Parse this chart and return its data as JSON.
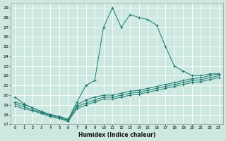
{
  "xlabel": "Humidex (Indice chaleur)",
  "background_color": "#cce8e0",
  "grid_color": "#ffffff",
  "line_color": "#1a7a6e",
  "xlim": [
    -0.5,
    23.5
  ],
  "ylim": [
    17,
    29.5
  ],
  "xticks": [
    0,
    1,
    2,
    3,
    4,
    5,
    6,
    7,
    8,
    9,
    10,
    11,
    12,
    13,
    14,
    15,
    16,
    17,
    18,
    19,
    20,
    21,
    22,
    23
  ],
  "yticks": [
    17,
    18,
    19,
    20,
    21,
    22,
    23,
    24,
    25,
    26,
    27,
    28,
    29
  ],
  "lines": [
    {
      "x": [
        0,
        1,
        2,
        3,
        4,
        5,
        6,
        7,
        8,
        9,
        10,
        11,
        12,
        13,
        14,
        15,
        16,
        17,
        18,
        19,
        20,
        21,
        22,
        23
      ],
      "y": [
        19.8,
        19.1,
        18.7,
        18.3,
        18.0,
        17.8,
        17.5,
        19.3,
        21.0,
        21.5,
        27.0,
        29.0,
        27.0,
        28.3,
        28.0,
        27.8,
        27.2,
        25.0,
        23.0,
        22.5,
        22.0,
        22.0,
        22.2,
        22.2
      ]
    },
    {
      "x": [
        0,
        1,
        2,
        3,
        4,
        5,
        6,
        7,
        8,
        9,
        10,
        11,
        12,
        13,
        14,
        15,
        16,
        17,
        18,
        19,
        20,
        21,
        22,
        23
      ],
      "y": [
        19.3,
        19.0,
        18.7,
        18.3,
        18.0,
        17.8,
        17.5,
        19.0,
        19.5,
        19.8,
        20.0,
        20.0,
        20.2,
        20.4,
        20.5,
        20.7,
        20.9,
        21.1,
        21.3,
        21.5,
        21.7,
        21.8,
        22.0,
        22.2
      ]
    },
    {
      "x": [
        0,
        1,
        2,
        3,
        4,
        5,
        6,
        7,
        8,
        9,
        10,
        11,
        12,
        13,
        14,
        15,
        16,
        17,
        18,
        19,
        20,
        21,
        22,
        23
      ],
      "y": [
        19.1,
        18.8,
        18.5,
        18.2,
        17.9,
        17.7,
        17.4,
        18.8,
        19.2,
        19.5,
        19.8,
        19.8,
        20.0,
        20.2,
        20.3,
        20.5,
        20.7,
        20.9,
        21.1,
        21.3,
        21.5,
        21.6,
        21.8,
        22.0
      ]
    },
    {
      "x": [
        0,
        1,
        2,
        3,
        4,
        5,
        6,
        7,
        8,
        9,
        10,
        11,
        12,
        13,
        14,
        15,
        16,
        17,
        18,
        19,
        20,
        21,
        22,
        23
      ],
      "y": [
        18.9,
        18.6,
        18.4,
        18.1,
        17.8,
        17.6,
        17.3,
        18.6,
        19.0,
        19.3,
        19.6,
        19.6,
        19.8,
        20.0,
        20.1,
        20.3,
        20.5,
        20.7,
        20.9,
        21.1,
        21.3,
        21.4,
        21.6,
        21.8
      ]
    }
  ]
}
